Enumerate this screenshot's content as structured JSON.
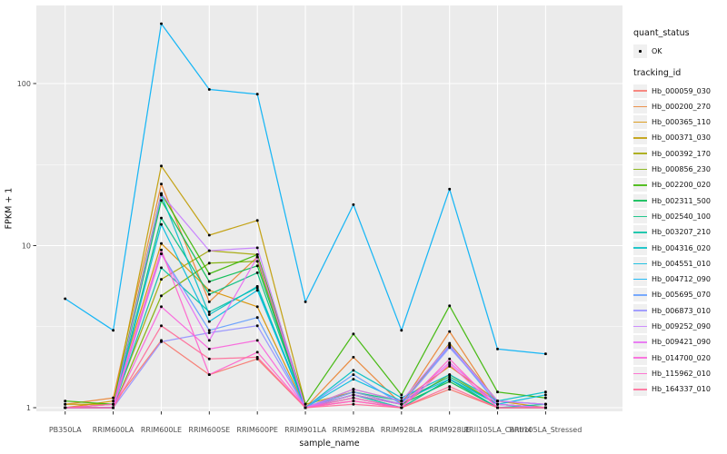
{
  "chart_data": {
    "type": "line",
    "title": "",
    "xlabel": "sample_name",
    "ylabel": "FPKM + 1",
    "y_scale": "log10",
    "ylim": [
      0.95,
      310
    ],
    "y_ticks": [
      1,
      10,
      100
    ],
    "y_tick_labels": [
      "1",
      "10",
      "100"
    ],
    "y_minor_ticks": [
      3.162,
      31.623
    ],
    "grid": true,
    "legend_position": "right",
    "point_marker": "small-black-square",
    "x_categories": [
      "PB350LA",
      "RRIM600LA",
      "RRIM600LE",
      "RRIM600SE",
      "RRIM600PE",
      "RRIM901LA",
      "RRIM928BA",
      "RRIM928LA",
      "RRIM928LE",
      "RRII105LA_Control",
      "RRII105LA_Stressed"
    ],
    "series": [
      {
        "name": "Hb_000059_030",
        "color": "#F8766D",
        "values": [
          1.0,
          1.05,
          2.6,
          1.6,
          2.0,
          1.0,
          1.1,
          1.0,
          1.3,
          1.0,
          1.0
        ]
      },
      {
        "name": "Hb_000200_270",
        "color": "#EA8331",
        "values": [
          1.05,
          1.15,
          24.0,
          4.5,
          8.5,
          1.0,
          2.05,
          1.05,
          2.95,
          1.05,
          1.0
        ]
      },
      {
        "name": "Hb_000365_110",
        "color": "#D89000",
        "values": [
          1.0,
          1.1,
          10.3,
          5.3,
          4.2,
          1.0,
          1.3,
          1.1,
          1.8,
          1.1,
          1.0
        ]
      },
      {
        "name": "Hb_000371_030",
        "color": "#C09B00",
        "values": [
          1.05,
          1.05,
          31.0,
          11.6,
          14.3,
          1.05,
          1.25,
          1.05,
          2.5,
          1.1,
          1.05
        ]
      },
      {
        "name": "Hb_000392_170",
        "color": "#A3A500",
        "values": [
          1.0,
          1.05,
          6.2,
          9.3,
          8.8,
          1.0,
          1.2,
          1.05,
          1.6,
          1.05,
          1.0
        ]
      },
      {
        "name": "Hb_000856_230",
        "color": "#7CAE00",
        "values": [
          1.0,
          1.0,
          4.9,
          7.8,
          8.0,
          1.0,
          1.15,
          1.0,
          1.5,
          1.0,
          1.0
        ]
      },
      {
        "name": "Hb_002200_020",
        "color": "#39B600",
        "values": [
          1.1,
          1.05,
          21.0,
          6.7,
          8.8,
          1.05,
          2.85,
          1.2,
          4.25,
          1.25,
          1.15
        ]
      },
      {
        "name": "Hb_002311_500",
        "color": "#00BB4E",
        "values": [
          1.0,
          1.0,
          19.0,
          6.0,
          7.5,
          1.0,
          1.2,
          1.05,
          1.45,
          1.0,
          1.0
        ]
      },
      {
        "name": "Hb_002540_100",
        "color": "#00BF7D",
        "values": [
          1.0,
          1.0,
          14.8,
          5.0,
          6.8,
          1.0,
          1.25,
          1.1,
          1.55,
          1.05,
          1.0
        ]
      },
      {
        "name": "Hb_003207_210",
        "color": "#00C1A3",
        "values": [
          1.0,
          1.0,
          7.3,
          3.9,
          5.5,
          1.0,
          1.2,
          1.0,
          1.5,
          1.0,
          1.05
        ]
      },
      {
        "name": "Hb_004316_020",
        "color": "#00BFC4",
        "values": [
          1.0,
          1.0,
          20.5,
          3.75,
          5.6,
          1.0,
          1.7,
          1.15,
          1.6,
          1.1,
          1.25
        ]
      },
      {
        "name": "Hb_004551_010",
        "color": "#00BADE",
        "values": [
          1.0,
          1.0,
          13.5,
          3.4,
          5.3,
          1.0,
          1.5,
          1.1,
          1.5,
          1.05,
          1.2
        ]
      },
      {
        "name": "Hb_004712_090",
        "color": "#00B0F6",
        "values": [
          4.7,
          3.0,
          234.0,
          92.0,
          86.0,
          4.5,
          17.9,
          3.0,
          22.3,
          2.3,
          2.15
        ]
      },
      {
        "name": "Hb_005695_070",
        "color": "#619CFF",
        "values": [
          1.0,
          1.0,
          8.9,
          3.0,
          3.6,
          1.0,
          1.6,
          1.05,
          2.4,
          1.05,
          1.0
        ]
      },
      {
        "name": "Hb_006873_010",
        "color": "#9590FF",
        "values": [
          1.0,
          1.0,
          2.55,
          2.9,
          3.2,
          1.0,
          1.25,
          1.05,
          2.35,
          1.1,
          1.05
        ]
      },
      {
        "name": "Hb_009252_090",
        "color": "#C77CFF",
        "values": [
          1.0,
          1.0,
          20.8,
          9.3,
          9.7,
          1.0,
          1.3,
          1.1,
          2.45,
          1.1,
          1.05
        ]
      },
      {
        "name": "Hb_009421_090",
        "color": "#E76BF3",
        "values": [
          1.0,
          1.0,
          8.9,
          2.6,
          8.5,
          1.0,
          1.2,
          1.05,
          1.9,
          1.05,
          1.0
        ]
      },
      {
        "name": "Hb_014700_020",
        "color": "#FA62DB",
        "values": [
          1.0,
          1.0,
          4.2,
          2.3,
          2.6,
          1.0,
          1.15,
          1.0,
          1.85,
          1.0,
          1.0
        ]
      },
      {
        "name": "Hb_115962_010",
        "color": "#FF61CC",
        "values": [
          1.0,
          1.05,
          9.4,
          1.6,
          2.2,
          1.0,
          1.1,
          1.0,
          2.0,
          1.0,
          1.0
        ]
      },
      {
        "name": "Hb_164337_010",
        "color": "#FF6A98",
        "values": [
          1.0,
          1.0,
          3.2,
          2.0,
          2.05,
          1.0,
          1.05,
          1.0,
          1.35,
          1.0,
          1.0
        ]
      }
    ]
  },
  "legend": {
    "quant_title": "quant_status",
    "quant_items": [
      {
        "label": "OK",
        "symbol": "filled-point"
      }
    ],
    "tracking_title": "tracking_id"
  },
  "colors": {
    "panel_bg": "#EBEBEB",
    "grid": "#FFFFFF",
    "legend_key_bg": "#F0F0F0",
    "axis_text": "#4D4D4D",
    "tick_mark": "#333333",
    "point": "#000000"
  }
}
